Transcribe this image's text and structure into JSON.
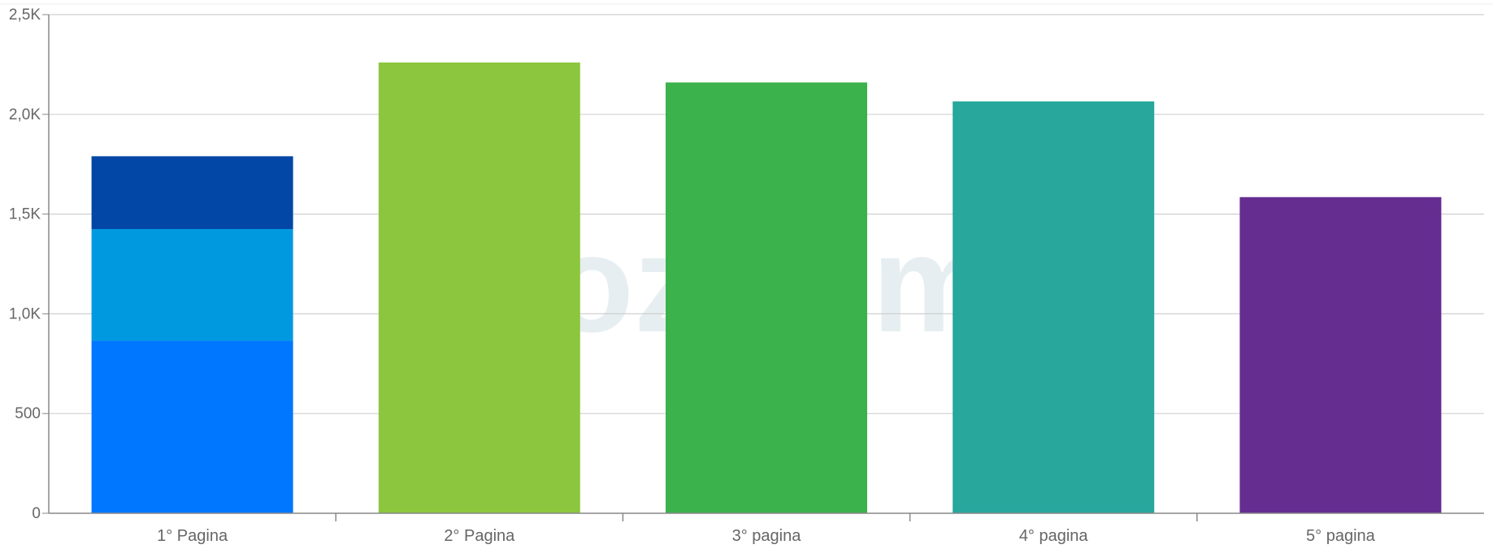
{
  "chart_data": {
    "type": "bar",
    "stacked": true,
    "title": "",
    "xlabel": "",
    "ylabel": "",
    "ylim": [
      0,
      2500
    ],
    "yticks": [
      0,
      500,
      1000,
      1500,
      2000,
      2500
    ],
    "ytick_labels": [
      "0",
      "500",
      "1,0K",
      "1,5K",
      "2,0K",
      "2,5K"
    ],
    "grid": true,
    "legend": "none",
    "categories": [
      "1° Pagina",
      "2° Pagina",
      "3° pagina",
      "4° pagina",
      "5° pagina"
    ],
    "bars": [
      {
        "category": "1° Pagina",
        "segments": [
          {
            "value": 865,
            "color": "#0077ff"
          },
          {
            "value": 560,
            "color": "#0099e0"
          },
          {
            "value": 365,
            "color": "#0347a6"
          }
        ]
      },
      {
        "category": "2° Pagina",
        "segments": [
          {
            "value": 2260,
            "color": "#8cc63e"
          }
        ]
      },
      {
        "category": "3° pagina",
        "segments": [
          {
            "value": 2160,
            "color": "#3bb24b"
          }
        ]
      },
      {
        "category": "4° pagina",
        "segments": [
          {
            "value": 2065,
            "color": "#28a79d"
          }
        ]
      },
      {
        "category": "5° pagina",
        "segments": [
          {
            "value": 1585,
            "color": "#662d91"
          }
        ]
      }
    ],
    "watermark": "ozoom"
  }
}
